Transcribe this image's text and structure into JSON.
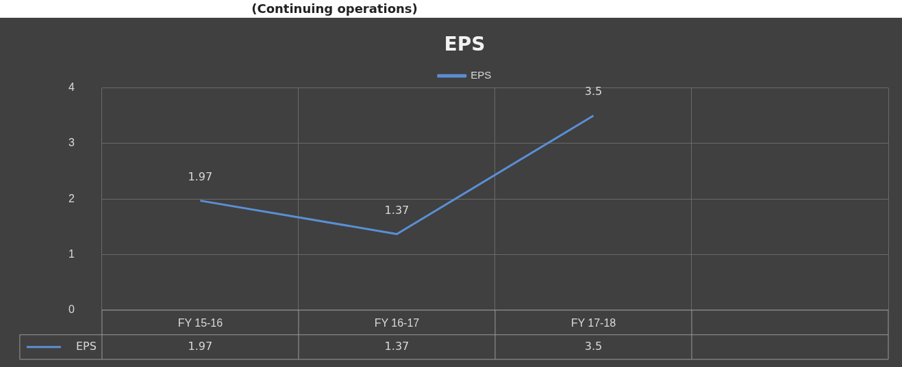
{
  "chart_data": {
    "type": "line",
    "title": "EPS",
    "annotations": [
      "(Continuing operations)",
      "1.97",
      "1.37",
      "3.5"
    ],
    "categories": [
      "FY 15-16",
      "FY 16-17",
      "FY 17-18",
      null
    ],
    "series": [
      {
        "name": "EPS",
        "color": "#5b8fd6",
        "values": [
          1.97,
          1.37,
          3.5,
          null
        ],
        "value_labels": [
          "1.97",
          "1.37",
          "3.5",
          null
        ]
      }
    ],
    "ylim": [
      0,
      4
    ],
    "yticks": [
      0,
      1,
      2,
      3,
      4
    ],
    "grid": true,
    "legend": "top",
    "data_labels": true,
    "marker": "none",
    "line_style": "solid"
  }
}
